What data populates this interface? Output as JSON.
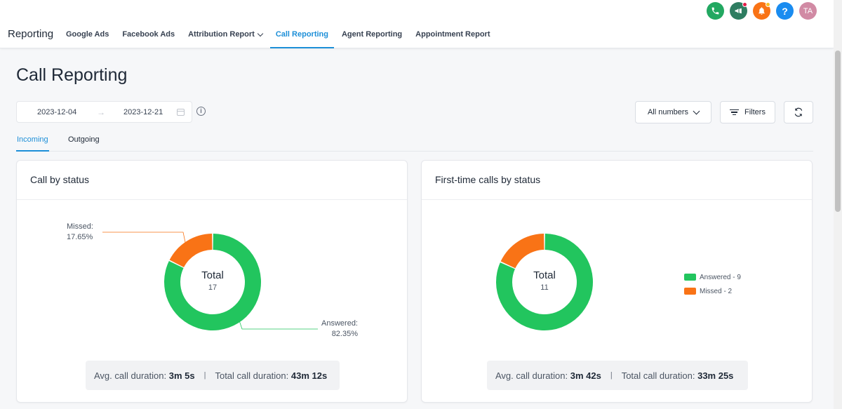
{
  "app": {
    "brand": "Reporting"
  },
  "nav": [
    {
      "label": "Google Ads",
      "active": false
    },
    {
      "label": "Facebook Ads",
      "active": false
    },
    {
      "label": "Attribution Report",
      "active": false,
      "dropdown": true
    },
    {
      "label": "Call Reporting",
      "active": true
    },
    {
      "label": "Agent Reporting",
      "active": false
    },
    {
      "label": "Appointment Report",
      "active": false
    }
  ],
  "top_icons": [
    {
      "name": "phone-icon",
      "color": "#22a861"
    },
    {
      "name": "megaphone-icon",
      "color": "#2e7d61"
    },
    {
      "name": "bell-icon",
      "color": "#f97316"
    },
    {
      "name": "help-icon",
      "color": "#1a8cf0",
      "glyph": "?"
    },
    {
      "name": "avatar",
      "color": "#d18aa4",
      "initials": "TA"
    }
  ],
  "page": {
    "title": "Call Reporting"
  },
  "date_range": {
    "start": "2023-12-04",
    "end": "2023-12-21"
  },
  "toolbar": {
    "numbers_label": "All numbers",
    "filters_label": "Filters"
  },
  "tabs": [
    {
      "label": "Incoming",
      "active": true
    },
    {
      "label": "Outgoing",
      "active": false
    }
  ],
  "colors": {
    "answered": "#22c55e",
    "missed": "#f97316",
    "accent": "#1d8fd8"
  },
  "cards": {
    "left": {
      "title": "Call by status",
      "center_label": "Total",
      "center_value": "17",
      "labels": {
        "missed_name": "Missed:",
        "missed_pct": "17.65%",
        "answered_name": "Answered:",
        "answered_pct": "82.35%"
      },
      "stats": {
        "avg_label": "Avg. call duration:",
        "avg_value": "3m 5s",
        "total_label": "Total call duration:",
        "total_value": "43m 12s",
        "sep": "|"
      }
    },
    "right": {
      "title": "First-time calls by status",
      "center_label": "Total",
      "center_value": "11",
      "legend": [
        "Answered - 9",
        "Missed - 2"
      ],
      "stats": {
        "avg_label": "Avg. call duration:",
        "avg_value": "3m 42s",
        "total_label": "Total call duration:",
        "total_value": "33m 25s",
        "sep": "|"
      }
    }
  },
  "chart_data": [
    {
      "type": "pie",
      "title": "Call by status",
      "categories": [
        "Answered",
        "Missed"
      ],
      "values": [
        14,
        3
      ],
      "percentages": [
        82.35,
        17.65
      ],
      "total": 17
    },
    {
      "type": "pie",
      "title": "First-time calls by status",
      "categories": [
        "Answered",
        "Missed"
      ],
      "values": [
        9,
        2
      ],
      "total": 11
    }
  ]
}
